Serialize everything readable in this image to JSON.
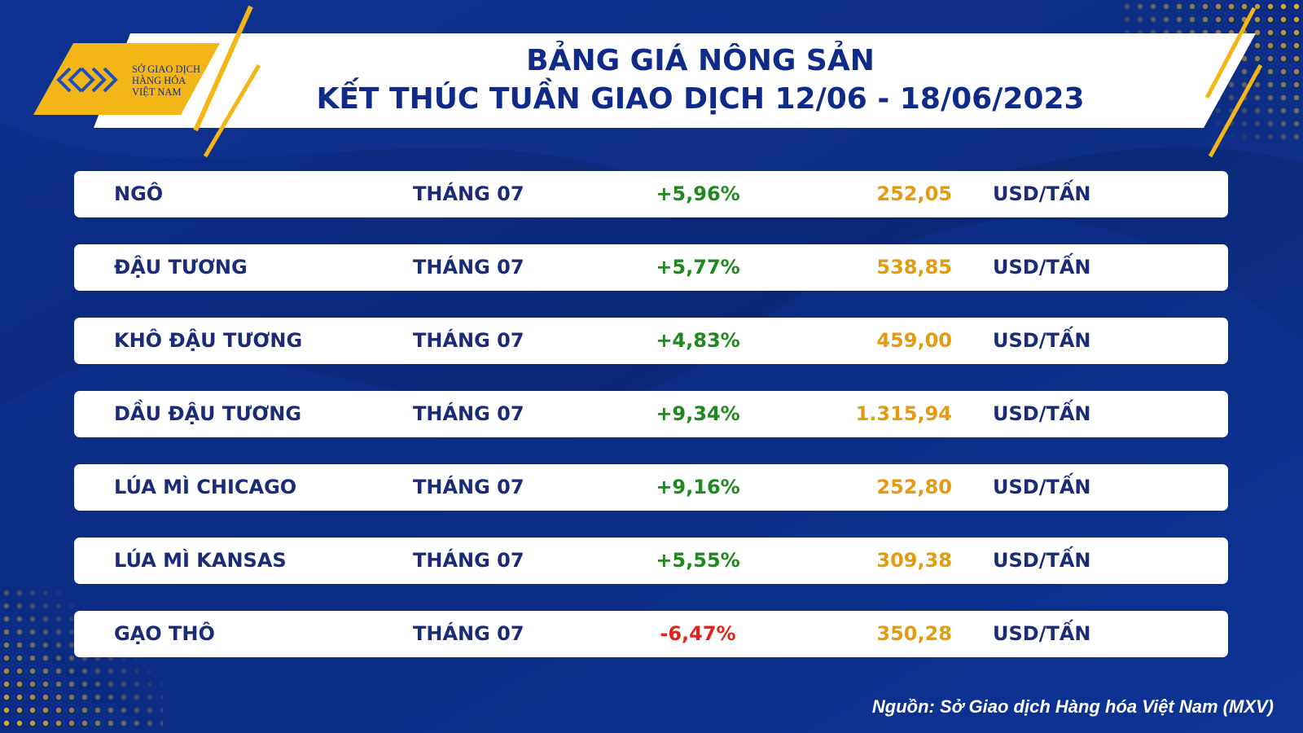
{
  "header": {
    "logo": [
      "SỞ GIAO DỊCH",
      "HÀNG HÓA",
      "VIỆT NAM"
    ],
    "title": [
      "BẢNG GIÁ NÔNG SẢN",
      "KẾT THÚC TUẦN GIAO DỊCH 12/06 - 18/06/2023"
    ]
  },
  "table": {
    "rows": [
      [
        "NGÔ",
        "THÁNG 07",
        "+5,96%",
        "252,05",
        "USD/TẤN"
      ],
      [
        "ĐẬU TƯƠNG",
        "THÁNG 07",
        "+5,77%",
        "538,85",
        "USD/TẤN"
      ],
      [
        "KHÔ ĐẬU TƯƠNG",
        "THÁNG 07",
        "+4,83%",
        "459,00",
        "USD/TẤN"
      ],
      [
        "DẦU ĐẬU TƯƠNG",
        "THÁNG 07",
        "+9,34%",
        "1.315,94",
        "USD/TẤN"
      ],
      [
        "LÚA MÌ CHICAGO",
        "THÁNG 07",
        "+9,16%",
        "252,80",
        "USD/TẤN"
      ],
      [
        "LÚA MÌ KANSAS",
        "THÁNG 07",
        "+5,55%",
        "309,38",
        "USD/TẤN"
      ],
      [
        "GẠO THÔ",
        "THÁNG 07",
        "-6,47%",
        "350,28",
        "USD/TẤN"
      ]
    ]
  },
  "source": "Nguồn: Sở Giao dịch Hàng hóa Việt Nam (MXV)"
}
